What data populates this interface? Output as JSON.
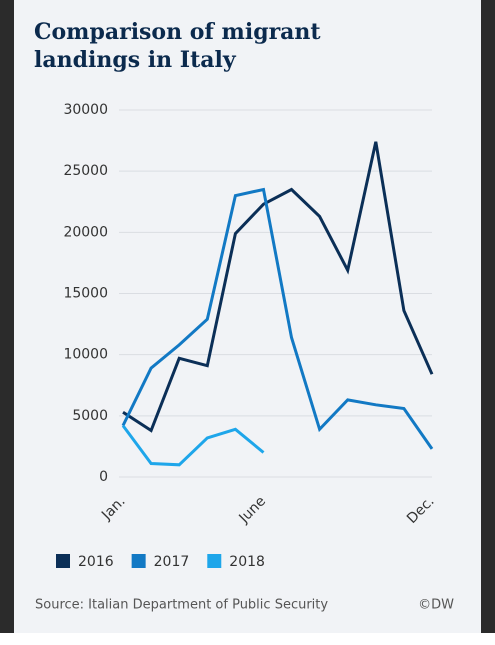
{
  "chart_data": {
    "type": "line",
    "title": "Comparison of migrant landings in Italy",
    "categories": [
      "Jan.",
      null,
      null,
      null,
      null,
      "June",
      null,
      null,
      null,
      null,
      null,
      "Dec."
    ],
    "series": [
      {
        "name": "2016",
        "color": "#0b2f57",
        "values": [
          5300,
          3800,
          9700,
          9100,
          19900,
          22300,
          23500,
          21300,
          16900,
          27400,
          13600,
          8400
        ]
      },
      {
        "name": "2017",
        "color": "#1279c4",
        "values": [
          4200,
          8900,
          10800,
          12900,
          23000,
          23500,
          11400,
          3900,
          6300,
          5900,
          5600,
          2300
        ]
      },
      {
        "name": "2018",
        "color": "#1ea6ea",
        "values": [
          4200,
          1100,
          1000,
          3200,
          3900,
          2000,
          null,
          null,
          null,
          null,
          null,
          null
        ]
      }
    ],
    "ylim": [
      0,
      30000
    ],
    "yticks": [
      0,
      5000,
      10000,
      15000,
      20000,
      25000,
      30000
    ],
    "grid": true,
    "source": "Source: Italian Department of Public Security",
    "credit": "©DW"
  }
}
